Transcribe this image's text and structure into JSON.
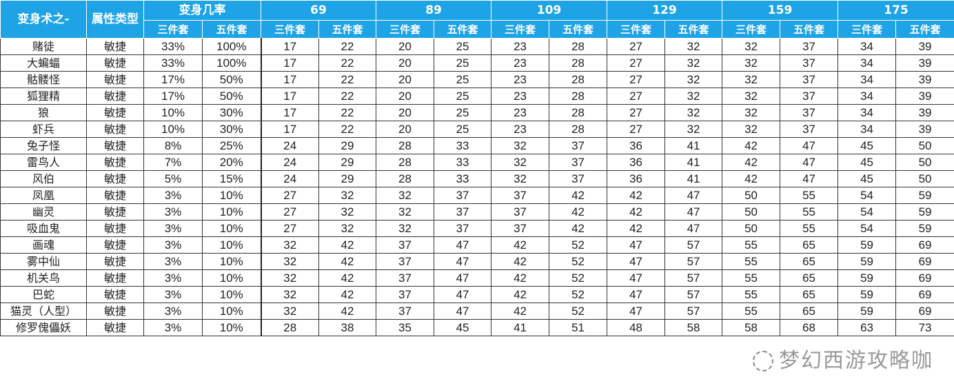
{
  "header": {
    "name_col": "变身术之-",
    "attr_col": "属性类型",
    "rate_group": "变身几率",
    "three_set": "三件套",
    "five_set": "五件套",
    "levels": [
      "69",
      "89",
      "109",
      "129",
      "159",
      "175"
    ]
  },
  "rows": [
    {
      "name": "赌徒",
      "attr": "敏捷",
      "r3": "33%",
      "r5": "100%",
      "vals": [
        "17",
        "22",
        "20",
        "25",
        "23",
        "28",
        "27",
        "32",
        "32",
        "37",
        "34",
        "39"
      ]
    },
    {
      "name": "大蝙蝠",
      "attr": "敏捷",
      "r3": "33%",
      "r5": "100%",
      "vals": [
        "17",
        "22",
        "20",
        "25",
        "23",
        "28",
        "27",
        "32",
        "32",
        "37",
        "34",
        "39"
      ]
    },
    {
      "name": "骷髅怪",
      "attr": "敏捷",
      "r3": "17%",
      "r5": "50%",
      "vals": [
        "17",
        "22",
        "20",
        "25",
        "23",
        "28",
        "27",
        "32",
        "32",
        "37",
        "34",
        "39"
      ]
    },
    {
      "name": "狐狸精",
      "attr": "敏捷",
      "r3": "17%",
      "r5": "50%",
      "vals": [
        "17",
        "22",
        "20",
        "25",
        "23",
        "28",
        "27",
        "32",
        "32",
        "37",
        "34",
        "39"
      ]
    },
    {
      "name": "狼",
      "attr": "敏捷",
      "r3": "10%",
      "r5": "30%",
      "vals": [
        "17",
        "22",
        "20",
        "25",
        "23",
        "28",
        "27",
        "32",
        "32",
        "37",
        "34",
        "39"
      ]
    },
    {
      "name": "虾兵",
      "attr": "敏捷",
      "r3": "10%",
      "r5": "30%",
      "vals": [
        "17",
        "22",
        "20",
        "25",
        "23",
        "28",
        "27",
        "32",
        "32",
        "37",
        "34",
        "39"
      ]
    },
    {
      "name": "兔子怪",
      "attr": "敏捷",
      "r3": "8%",
      "r5": "25%",
      "vals": [
        "24",
        "29",
        "28",
        "33",
        "32",
        "37",
        "36",
        "41",
        "42",
        "47",
        "45",
        "50"
      ]
    },
    {
      "name": "雷鸟人",
      "attr": "敏捷",
      "r3": "7%",
      "r5": "20%",
      "vals": [
        "24",
        "29",
        "28",
        "33",
        "32",
        "37",
        "36",
        "41",
        "42",
        "47",
        "45",
        "50"
      ]
    },
    {
      "name": "风伯",
      "attr": "敏捷",
      "r3": "5%",
      "r5": "15%",
      "vals": [
        "24",
        "29",
        "28",
        "33",
        "32",
        "37",
        "36",
        "41",
        "42",
        "47",
        "45",
        "50"
      ]
    },
    {
      "name": "凤凰",
      "attr": "敏捷",
      "r3": "3%",
      "r5": "10%",
      "vals": [
        "27",
        "32",
        "32",
        "37",
        "37",
        "42",
        "42",
        "47",
        "50",
        "55",
        "54",
        "59"
      ]
    },
    {
      "name": "幽灵",
      "attr": "敏捷",
      "r3": "3%",
      "r5": "10%",
      "vals": [
        "27",
        "32",
        "32",
        "37",
        "37",
        "42",
        "42",
        "47",
        "50",
        "55",
        "54",
        "59"
      ]
    },
    {
      "name": "吸血鬼",
      "attr": "敏捷",
      "r3": "3%",
      "r5": "10%",
      "vals": [
        "27",
        "32",
        "32",
        "37",
        "37",
        "42",
        "42",
        "47",
        "50",
        "55",
        "54",
        "59"
      ]
    },
    {
      "name": "画魂",
      "attr": "敏捷",
      "r3": "3%",
      "r5": "10%",
      "vals": [
        "32",
        "42",
        "37",
        "47",
        "42",
        "52",
        "47",
        "57",
        "55",
        "65",
        "59",
        "69"
      ]
    },
    {
      "name": "雾中仙",
      "attr": "敏捷",
      "r3": "3%",
      "r5": "10%",
      "vals": [
        "32",
        "42",
        "37",
        "47",
        "42",
        "52",
        "47",
        "57",
        "55",
        "65",
        "59",
        "69"
      ]
    },
    {
      "name": "机关鸟",
      "attr": "敏捷",
      "r3": "3%",
      "r5": "10%",
      "vals": [
        "32",
        "42",
        "37",
        "47",
        "42",
        "52",
        "47",
        "57",
        "55",
        "65",
        "59",
        "69"
      ]
    },
    {
      "name": "巴蛇",
      "attr": "敏捷",
      "r3": "3%",
      "r5": "10%",
      "vals": [
        "32",
        "42",
        "37",
        "47",
        "42",
        "52",
        "47",
        "57",
        "55",
        "65",
        "59",
        "69"
      ]
    },
    {
      "name": "猫灵（人型）",
      "attr": "敏捷",
      "r3": "3%",
      "r5": "10%",
      "vals": [
        "32",
        "42",
        "37",
        "47",
        "42",
        "52",
        "47",
        "57",
        "55",
        "65",
        "59",
        "69"
      ]
    },
    {
      "name": "修罗傀儡妖",
      "attr": "敏捷",
      "r3": "3%",
      "r5": "10%",
      "vals": [
        "28",
        "38",
        "35",
        "45",
        "41",
        "51",
        "48",
        "58",
        "58",
        "68",
        "63",
        "73"
      ]
    }
  ],
  "watermark": "梦幻西游攻略咖",
  "colors": {
    "header_bg": "#1ea3e6",
    "header_text": "#ffffff"
  }
}
